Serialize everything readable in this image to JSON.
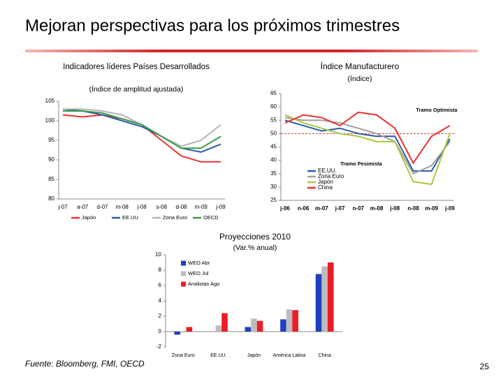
{
  "title": "Mejoran perspectivas para los próximos trimestres",
  "source": "Fuente: Bloomberg, FMI, OECD",
  "page_number": 25,
  "chart_data": [
    {
      "type": "line",
      "title": "Indicadores líderes Países Desarrollados",
      "subtitle": "(Índice de amplitud ajustada)",
      "categories": [
        "j-07",
        "a-07",
        "d-07",
        "m-08",
        "j-08",
        "s-08",
        "d-08",
        "m-09",
        "j-09"
      ],
      "ylim": [
        80,
        105
      ],
      "yticks": [
        80,
        85,
        90,
        95,
        100,
        105
      ],
      "legend": "bottom",
      "series": [
        {
          "name": "Japón",
          "color": "#e8312f",
          "values": [
            101.5,
            101,
            101.5,
            100.5,
            99,
            95,
            91,
            89.5,
            89.5
          ]
        },
        {
          "name": "EE.UU",
          "color": "#2a5caa",
          "values": [
            103,
            102.5,
            101.5,
            100,
            98.5,
            96,
            93,
            92,
            94
          ]
        },
        {
          "name": "Zona Euro",
          "color": "#b4b4b4",
          "values": [
            103,
            103,
            102.5,
            101.5,
            99,
            96,
            93.5,
            95,
            99
          ]
        },
        {
          "name": "OECD",
          "color": "#3d9a4a",
          "values": [
            102.5,
            102.5,
            102,
            100.5,
            99,
            96,
            93,
            93,
            96
          ]
        }
      ]
    },
    {
      "type": "line",
      "title": "Índice Manufacturero",
      "subtitle": "(Índice)",
      "categories": [
        "j-06",
        "n-06",
        "m-07",
        "j-07",
        "n-07",
        "m-08",
        "j-08",
        "n-08",
        "m-09",
        "j-09"
      ],
      "ylim": [
        25,
        65
      ],
      "yticks": [
        25,
        30,
        35,
        40,
        45,
        50,
        55,
        60,
        65
      ],
      "legend": "lower left",
      "reference_line": 50,
      "annotations": [
        {
          "text": "Tramo Optimista",
          "color": "#4a6fb5"
        },
        {
          "text": "Tramo Pesimista",
          "color": "#e03030"
        }
      ],
      "series": [
        {
          "name": "EE.UU.",
          "color": "#2a5caa",
          "values": [
            55,
            53,
            51,
            52,
            50,
            49,
            49,
            36,
            36,
            48
          ]
        },
        {
          "name": "Zona Euro",
          "color": "#a0a0a0",
          "values": [
            56,
            55,
            55,
            54,
            52,
            50,
            47,
            35,
            38,
            47
          ]
        },
        {
          "name": "Japón",
          "color": "#a8c83c",
          "values": [
            57,
            54,
            52,
            50,
            49,
            47,
            47,
            32,
            31,
            50
          ]
        },
        {
          "name": "China",
          "color": "#e8312f",
          "values": [
            54,
            57,
            56,
            53,
            58,
            57,
            52,
            39,
            49,
            53
          ]
        }
      ]
    },
    {
      "type": "bar",
      "title": "Proyecciones 2010",
      "subtitle": "(Var.% anual)",
      "categories": [
        "Zona Euro",
        "EE.UU.",
        "Japón",
        "América Latina",
        "China"
      ],
      "ylim": [
        -2,
        10
      ],
      "yticks": [
        -2,
        0,
        2,
        4,
        6,
        8,
        10
      ],
      "legend": "upper left",
      "series": [
        {
          "name": "WEO Abr",
          "color": "#1f3fbf",
          "values": [
            -0.4,
            0,
            0.6,
            1.6,
            7.5
          ]
        },
        {
          "name": "WEO Jul",
          "color": "#bdbdbd",
          "values": [
            -0.1,
            0.8,
            1.7,
            2.9,
            8.5
          ]
        },
        {
          "name": "Analistas Ago",
          "color": "#ee1c25",
          "values": [
            0.6,
            2.4,
            1.4,
            2.8,
            9.0
          ]
        }
      ]
    }
  ]
}
